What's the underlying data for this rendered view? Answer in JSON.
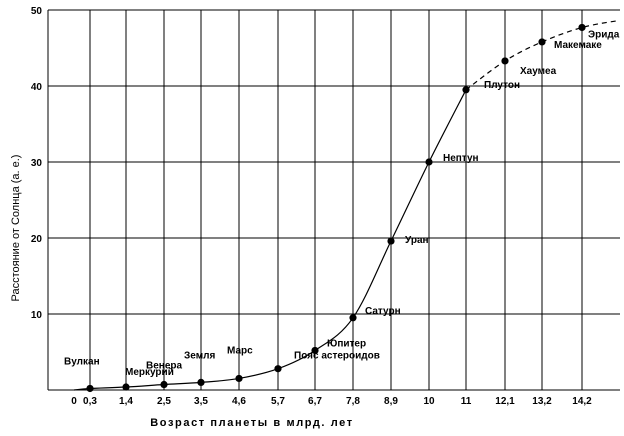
{
  "chart_data": {
    "type": "scatter",
    "xlabel": "Возраст планеты в млрд. лет",
    "ylabel": "Расстояние от Солнца (а. е.)",
    "x_ticks": [
      "0",
      "0,3",
      "1,4",
      "2,5",
      "3,5",
      "4,6",
      "5,7",
      "6,7",
      "7,8",
      "8,9",
      "10",
      "11",
      "12,1",
      "13,2",
      "14,2"
    ],
    "y_ticks": [
      "10",
      "20",
      "30",
      "40",
      "50"
    ],
    "ylim": [
      0,
      50
    ],
    "grid": true,
    "points": [
      {
        "name": "Вулкан",
        "x": "0,3",
        "y": 0.2
      },
      {
        "name": "Меркурий",
        "x": "1,4",
        "y": 0.39
      },
      {
        "name": "Венера",
        "x": "2,5",
        "y": 0.72
      },
      {
        "name": "Земля",
        "x": "3,5",
        "y": 1.0
      },
      {
        "name": "Марс",
        "x": "4,6",
        "y": 1.52
      },
      {
        "name": "Пояс астероидов",
        "x": "5,7",
        "y": 2.8
      },
      {
        "name": "Юпитер",
        "x": "6,7",
        "y": 5.2
      },
      {
        "name": "Сатурн",
        "x": "7,8",
        "y": 9.5
      },
      {
        "name": "Уран",
        "x": "8,9",
        "y": 19.6
      },
      {
        "name": "Нептун",
        "x": "10",
        "y": 30.0
      },
      {
        "name": "Плутон",
        "x": "11",
        "y": 39.5
      },
      {
        "name": "Хаумеа",
        "x": "12,1",
        "y": 43.3
      },
      {
        "name": "Макемаке",
        "x": "13,2",
        "y": 45.8
      },
      {
        "name": "Эрида",
        "x": "14,2",
        "y": 47.7
      }
    ],
    "solid_curve_until": "Плутон",
    "dashed_curve_after": "Плутон"
  }
}
